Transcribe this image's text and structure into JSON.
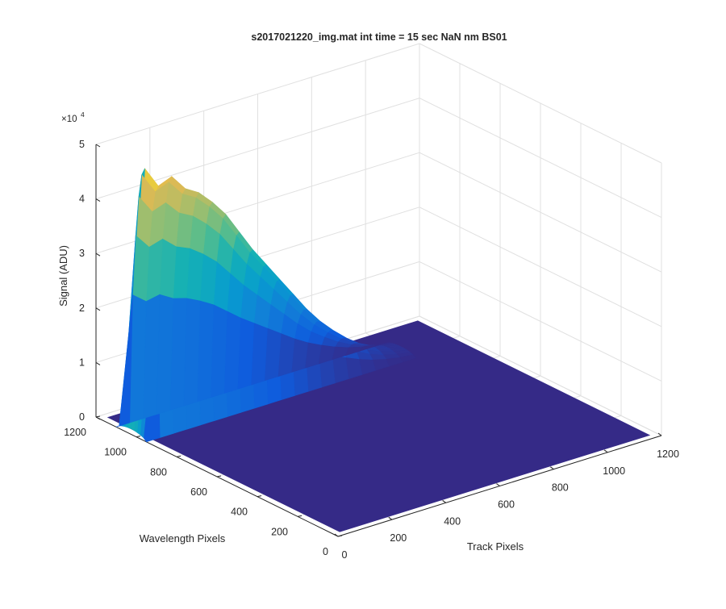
{
  "chart_data": {
    "type": "surface",
    "title": "s2017021220_img.mat int time = 15 sec  NaN nm BS01",
    "xlabel": "Track Pixels",
    "ylabel": "Wavelength Pixels",
    "zlabel": "Signal (ADU)",
    "z_exponent_label": "×10",
    "z_exponent_power": "4",
    "x_ticks": [
      "0",
      "200",
      "400",
      "600",
      "800",
      "1000",
      "1200"
    ],
    "y_ticks": [
      "0",
      "200",
      "400",
      "600",
      "800",
      "1000",
      "1200"
    ],
    "z_ticks": [
      "0",
      "1",
      "2",
      "3",
      "4",
      "5"
    ],
    "xlim": [
      0,
      1200
    ],
    "ylim": [
      0,
      1200
    ],
    "zlim": [
      0,
      50000
    ],
    "grid": true,
    "colormap": "parula",
    "baseline_color": "#352A87",
    "peak_signal": 50000,
    "signal_region": {
      "track_pixels": [
        0,
        1000
      ],
      "wavelength_pixels": [
        950,
        1100
      ]
    },
    "profile_along_track": {
      "track": [
        0,
        50,
        100,
        150,
        200,
        250,
        300,
        350,
        400,
        450,
        500,
        550,
        600,
        650,
        700,
        750,
        800,
        850,
        900,
        950,
        1000
      ],
      "signal": [
        1000,
        48000,
        44000,
        45000,
        42000,
        40500,
        38000,
        35000,
        31000,
        27000,
        23500,
        20000,
        16500,
        13000,
        10000,
        7500,
        5300,
        3500,
        2200,
        1300,
        700
      ]
    }
  }
}
